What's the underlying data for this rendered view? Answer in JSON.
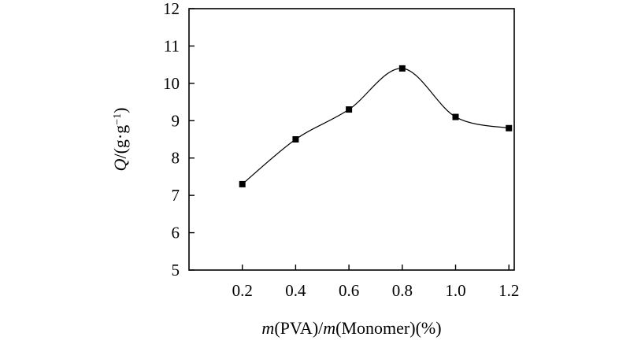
{
  "chart_data": {
    "type": "line",
    "title": "",
    "xlabel": {
      "parts": [
        {
          "text": "m",
          "italic": true
        },
        {
          "text": "(PVA)/",
          "italic": false
        },
        {
          "text": "m",
          "italic": true
        },
        {
          "text": "(Monomer)(%)",
          "italic": false
        }
      ]
    },
    "ylabel": {
      "parts": [
        {
          "text": "Q",
          "italic": true
        },
        {
          "text": "/(g·g",
          "italic": false
        },
        {
          "text": "−1",
          "italic": false,
          "superscript": true
        },
        {
          "text": ")",
          "italic": false
        }
      ]
    },
    "x_ticks": [
      "0.2",
      "0.4",
      "0.6",
      "0.8",
      "1.0",
      "1.2"
    ],
    "y_ticks": [
      "5",
      "6",
      "7",
      "8",
      "9",
      "10",
      "11",
      "12"
    ],
    "xlim": [
      0.0,
      1.22
    ],
    "ylim": [
      5,
      12
    ],
    "grid": false,
    "marker": "square",
    "smooth_line": true,
    "series": [
      {
        "x": [
          0.2,
          0.4,
          0.6,
          0.8,
          1.0,
          1.2
        ],
        "y": [
          7.3,
          8.5,
          9.3,
          10.4,
          9.1,
          8.8
        ]
      }
    ]
  }
}
